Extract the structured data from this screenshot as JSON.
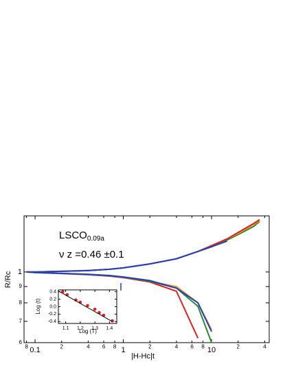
{
  "chart_data": [
    {
      "type": "line",
      "log_x": true,
      "log_y": true,
      "xlabel": "|H-Hc|t",
      "ylabel": "R/Rc",
      "annotations": [
        "LSCO",
        "0.09a",
        "ν z =0.46 ±0.1"
      ],
      "x": [
        0.08,
        0.1,
        0.2,
        0.4,
        0.7,
        1,
        2,
        4,
        7,
        10,
        15,
        20,
        30,
        35
      ],
      "xlim": [
        0.075,
        45
      ],
      "ylim": [
        0.6,
        1.5
      ],
      "xticks": [
        {
          "value": 0.08,
          "label": "8"
        },
        0.1,
        {
          "value": 0.2,
          "label": "2"
        },
        {
          "value": 0.4,
          "label": "4"
        },
        {
          "value": 0.6,
          "label": "6"
        },
        {
          "value": 0.8,
          "label": "8"
        },
        1,
        {
          "value": 2,
          "label": "2"
        },
        {
          "value": 4,
          "label": "4"
        },
        {
          "value": 6,
          "label": "6"
        },
        {
          "value": 8,
          "label": "8"
        },
        10,
        {
          "value": 20,
          "label": "2"
        },
        {
          "value": 40,
          "label": "4"
        }
      ],
      "yticks": [
        1,
        {
          "value": 0.9,
          "label": "9"
        },
        {
          "value": 0.8,
          "label": "8"
        },
        {
          "value": 0.7,
          "label": "7"
        },
        {
          "value": 0.6,
          "label": "6"
        }
      ],
      "series": [
        {
          "color": "#2a8a2a",
          "values": [
            1.0,
            1.0,
            1.005,
            1.01,
            1.02,
            1.03,
            1.06,
            1.1,
            1.16,
            1.2,
            1.26,
            1.31,
            1.39,
            1.44
          ]
        },
        {
          "color": "#f0a020",
          "values": [
            1.0,
            1.0,
            1.006,
            1.012,
            1.02,
            1.03,
            1.06,
            1.1,
            1.16,
            1.21,
            1.27,
            1.32,
            1.41,
            1.45
          ]
        },
        {
          "color": "#e02020",
          "values": [
            1.0,
            1.0,
            1.005,
            1.01,
            1.02,
            1.03,
            1.06,
            1.1,
            1.16,
            1.21,
            1.27,
            1.33,
            1.42,
            1.46
          ]
        },
        {
          "color": "#2040c0",
          "values": [
            1.0,
            1.0,
            1.005,
            1.01,
            1.02,
            1.03,
            1.06,
            1.1,
            1.16,
            1.2,
            1.25,
            null,
            null,
            null
          ]
        },
        {
          "color": "#e02020",
          "values": [
            1.0,
            0.995,
            0.988,
            0.98,
            0.97,
            0.96,
            0.93,
            0.87,
            0.62,
            null,
            null,
            null,
            null,
            null
          ]
        },
        {
          "color": "#f0a020",
          "values": [
            1.0,
            0.996,
            0.99,
            0.982,
            0.973,
            0.963,
            0.935,
            0.9,
            0.8,
            0.66,
            null,
            null,
            null,
            null
          ]
        },
        {
          "color": "#2a8a2a",
          "values": [
            1.0,
            0.996,
            0.99,
            0.982,
            0.973,
            0.963,
            0.935,
            0.89,
            0.78,
            0.6,
            null,
            null,
            null,
            null
          ]
        },
        {
          "color": "#2040c0",
          "values": [
            1.0,
            0.997,
            0.99,
            0.983,
            0.975,
            0.965,
            0.94,
            0.89,
            0.8,
            0.65,
            null,
            null,
            null,
            null
          ]
        }
      ]
    },
    {
      "type": "scatter",
      "xlabel": "Log (T)",
      "ylabel": "Log (t)",
      "xlim": [
        1.05,
        1.45
      ],
      "ylim": [
        -0.45,
        0.45
      ],
      "xticks": [
        1.1,
        1.2,
        1.3,
        1.4
      ],
      "yticks": [
        0.4,
        0.2,
        {
          "value": 0,
          "label": "0.0"
        },
        -0.2,
        -0.4
      ],
      "series": [
        {
          "color": "#e02020",
          "mode": "markers",
          "x": [
            1.08,
            1.11,
            1.17,
            1.2,
            1.25,
            1.3,
            1.33,
            1.36,
            1.42
          ],
          "values": [
            0.4,
            0.32,
            0.18,
            0.12,
            0.03,
            -0.07,
            -0.16,
            -0.23,
            -0.38
          ]
        },
        {
          "color": "#000000",
          "mode": "line",
          "x": [
            1.05,
            1.42
          ],
          "values": [
            0.42,
            -0.4
          ]
        }
      ]
    }
  ]
}
